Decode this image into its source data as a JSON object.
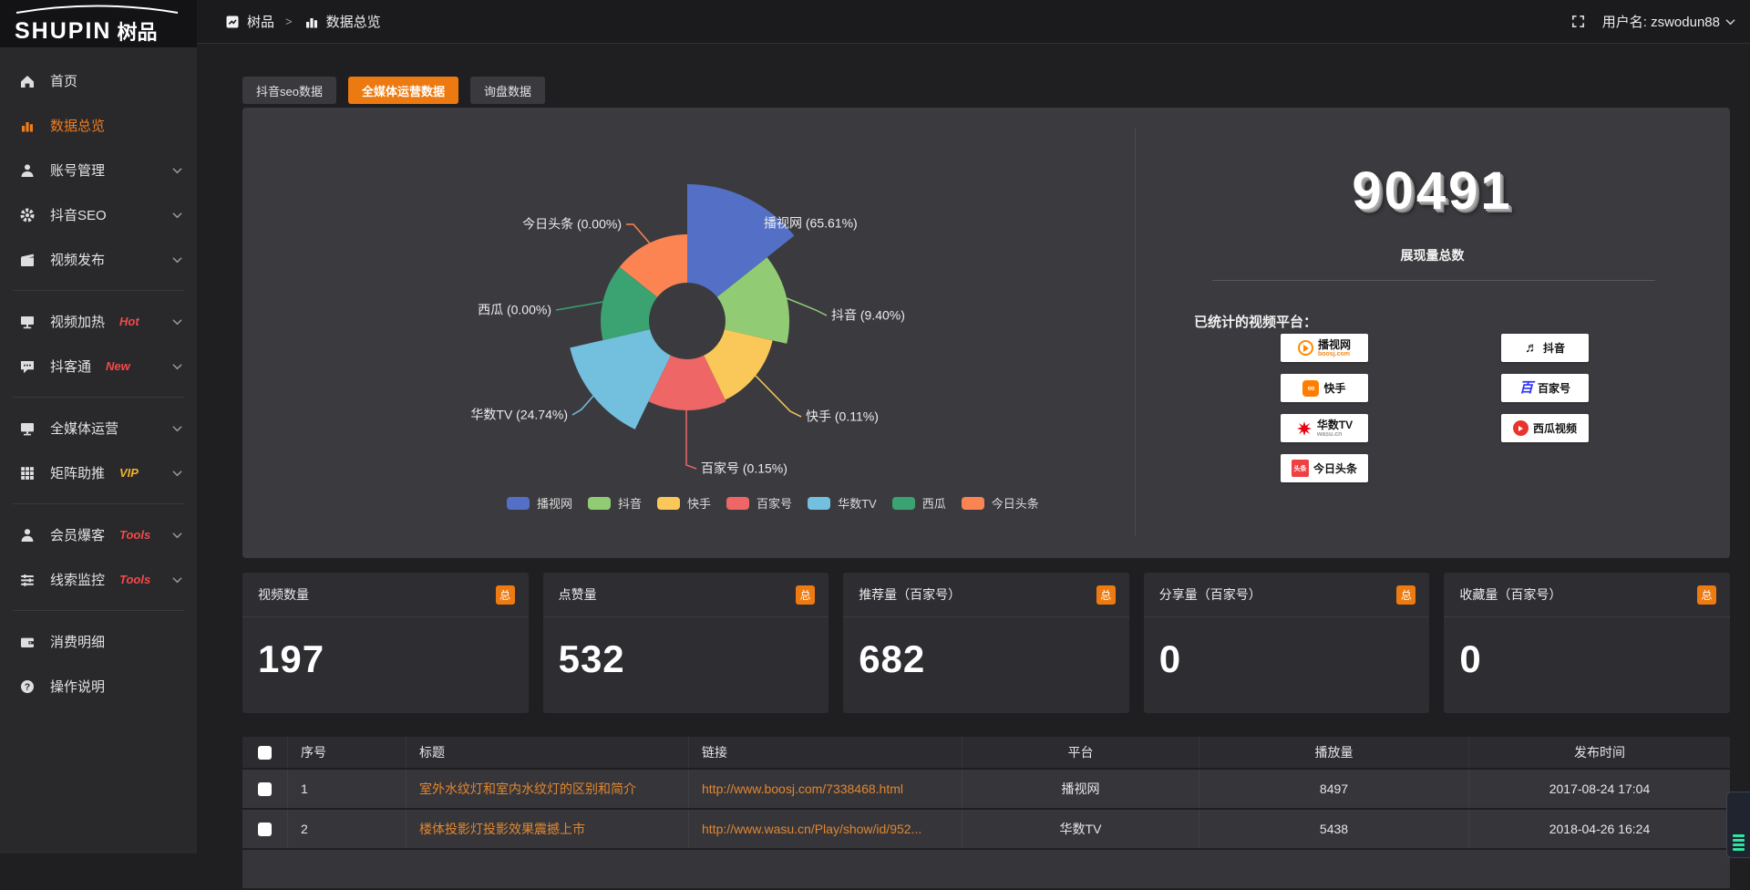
{
  "brand": {
    "logo_en": "SHUPIN",
    "logo_cn": "树品"
  },
  "topbar": {
    "breadcrumb": [
      {
        "label": "树品",
        "icon": "app-icon"
      },
      {
        "label": "数据总览",
        "icon": "bar-chart-icon"
      }
    ],
    "separator": ">",
    "username_label": "用户名: zswodun88"
  },
  "sidebar": {
    "items": [
      {
        "label": "首页",
        "icon": "home-icon"
      },
      {
        "label": "数据总览",
        "icon": "bar-chart-icon",
        "active": true
      },
      {
        "label": "账号管理",
        "icon": "user-icon",
        "chevron": true
      },
      {
        "label": "抖音SEO",
        "icon": "gear-icon",
        "chevron": true
      },
      {
        "label": "视频发布",
        "icon": "video-upload-icon",
        "chevron": true,
        "divider_after": true
      },
      {
        "label": "视频加热",
        "icon": "screen-play-icon",
        "tag": "Hot",
        "tag_color": "#f34a4a",
        "chevron": true
      },
      {
        "label": "抖客通",
        "icon": "chat-icon",
        "tag": "New",
        "tag_color": "#f34a4a",
        "chevron": true,
        "divider_after": true
      },
      {
        "label": "全媒体运营",
        "icon": "monitor-icon",
        "chevron": true
      },
      {
        "label": "矩阵助推",
        "icon": "grid-icon",
        "tag": "VIP",
        "tag_color": "#efb32a",
        "chevron": true,
        "divider_after": true
      },
      {
        "label": "会员爆客",
        "icon": "member-icon",
        "tag": "Tools",
        "tag_color": "#f34a4a",
        "chevron": true
      },
      {
        "label": "线索监控",
        "icon": "sliders-icon",
        "tag": "Tools",
        "tag_color": "#f34a4a",
        "chevron": true,
        "divider_after": true
      },
      {
        "label": "消费明细",
        "icon": "wallet-icon"
      },
      {
        "label": "操作说明",
        "icon": "help-icon"
      }
    ]
  },
  "tabs": [
    {
      "label": "抖音seo数据",
      "active": false
    },
    {
      "label": "全媒体运营数据",
      "active": true
    },
    {
      "label": "询盘数据",
      "active": false
    }
  ],
  "chart_data": {
    "type": "pie",
    "subtype": "nightingale-rose",
    "labels": [
      "播视网",
      "抖音",
      "快手",
      "百家号",
      "华数TV",
      "西瓜",
      "今日头条"
    ],
    "percentages": [
      65.61,
      9.4,
      0.11,
      0.15,
      24.74,
      0.0,
      0.0
    ],
    "colors": [
      "#5470c6",
      "#91cc75",
      "#fac858",
      "#ee6666",
      "#73c0de",
      "#3ba272",
      "#fc8452"
    ],
    "label_format": "{name} ({value}%)",
    "legend_position": "bottom",
    "radius_px": [
      150,
      112,
      96,
      98,
      132,
      95,
      95
    ],
    "inner_radius_px": 42
  },
  "summary": {
    "total_value": "90491",
    "total_label": "展现量总数",
    "platforms_label": "已统计的视频平台：",
    "platforms": [
      {
        "name": "播视网",
        "sub": "boosj.com",
        "style": "boosj"
      },
      {
        "name": "抖音",
        "style": "douyin"
      },
      {
        "name": "快手",
        "style": "kuaishou"
      },
      {
        "name": "百家号",
        "style": "baijiahao"
      },
      {
        "name": "华数TV",
        "sub": "wasu.cn",
        "style": "wasu"
      },
      {
        "name": "西瓜视频",
        "style": "xigua"
      },
      {
        "name": "今日头条",
        "style": "toutiao"
      }
    ]
  },
  "stat_cards": [
    {
      "label": "视频数量",
      "badge": "总",
      "value": "197"
    },
    {
      "label": "点赞量",
      "badge": "总",
      "value": "532"
    },
    {
      "label": "推荐量（百家号）",
      "badge": "总",
      "value": "682"
    },
    {
      "label": "分享量（百家号）",
      "badge": "总",
      "value": "0"
    },
    {
      "label": "收藏量（百家号）",
      "badge": "总",
      "value": "0"
    }
  ],
  "table": {
    "headers": [
      "序号",
      "标题",
      "链接",
      "平台",
      "播放量",
      "发布时间"
    ],
    "rows": [
      {
        "no": "1",
        "title": "室外水纹灯和室内水纹灯的区别和简介",
        "link": "http://www.boosj.com/7338468.html",
        "platform": "播视网",
        "plays": "8497",
        "time": "2017-08-24 17:04"
      },
      {
        "no": "2",
        "title": "楼体投影灯投影效果震撼上市",
        "link": "http://www.wasu.cn/Play/show/id/952...",
        "platform": "华数TV",
        "plays": "5438",
        "time": "2018-04-26 16:24"
      }
    ]
  }
}
